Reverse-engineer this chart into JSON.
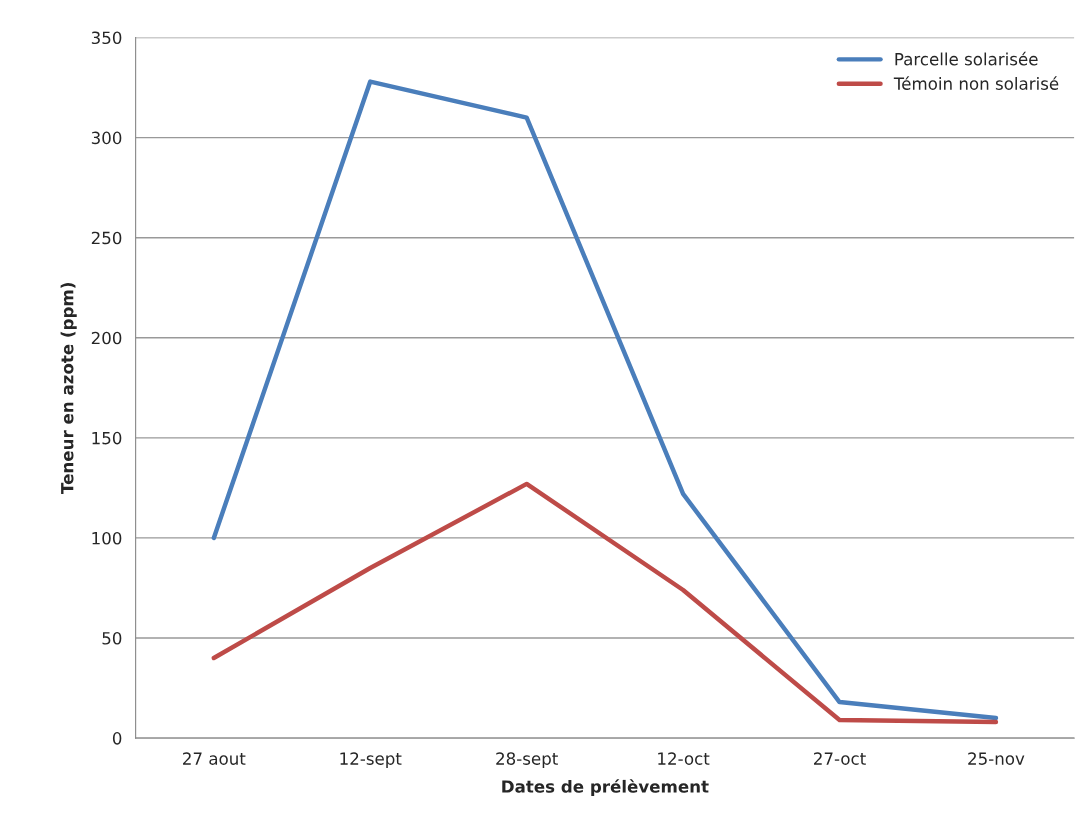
{
  "chart_data": {
    "type": "line",
    "xlabel": "Dates de prélèvement",
    "ylabel": "Teneur en azote (ppm)",
    "categories": [
      "27 aout",
      "12-sept",
      "28-sept",
      "12-oct",
      "27-oct",
      "25-nov"
    ],
    "series": [
      {
        "name": "Parcelle solarisée",
        "color": "#4a7ebb",
        "values": [
          100,
          328,
          310,
          122,
          18,
          10
        ]
      },
      {
        "name": "Témoin non solarisé",
        "color": "#be4b48",
        "values": [
          40,
          85,
          127,
          74,
          9,
          8
        ]
      }
    ],
    "ylim": [
      0,
      350
    ],
    "yticks": [
      0,
      50,
      100,
      150,
      200,
      250,
      300,
      350
    ],
    "grid": "y",
    "legend": "top right",
    "marker": "none",
    "line_style": "solid"
  }
}
